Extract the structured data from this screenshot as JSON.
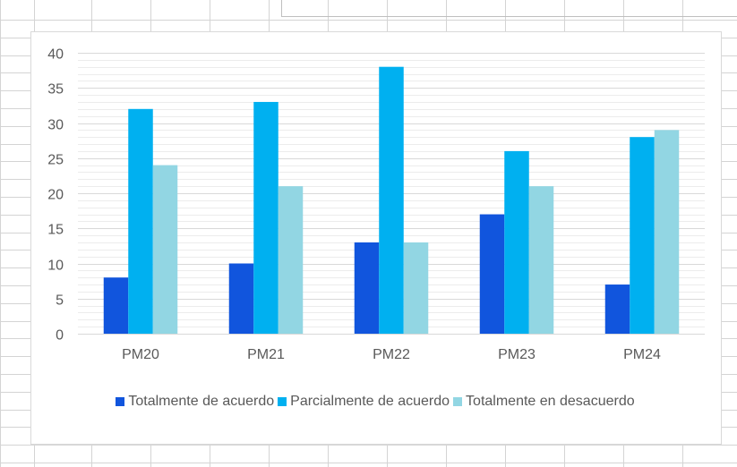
{
  "chart_data": {
    "type": "bar",
    "categories": [
      "PM20",
      "PM21",
      "PM22",
      "PM23",
      "PM24"
    ],
    "series": [
      {
        "name": "Totalmente de acuerdo",
        "values": [
          8,
          10,
          13,
          17,
          7
        ],
        "color": "#1155dd"
      },
      {
        "name": "Parcialmente de acuerdo",
        "values": [
          32,
          33,
          38,
          26,
          28
        ],
        "color": "#00b0f0"
      },
      {
        "name": "Totalmente en desacuerdo",
        "values": [
          24,
          21,
          13,
          21,
          29
        ],
        "color": "#92d6e3"
      }
    ],
    "ylim": [
      0,
      40
    ],
    "yticks": [
      0,
      5,
      10,
      15,
      20,
      25,
      30,
      35,
      40
    ],
    "grid": true,
    "legend_position": "bottom",
    "xlabel": "",
    "ylabel": "",
    "title": ""
  },
  "colors": {
    "gridline": "#d9d9d9",
    "axis": "#d9d9d9",
    "text": "#595959",
    "sheet_gridline": "#d4d4d4"
  }
}
